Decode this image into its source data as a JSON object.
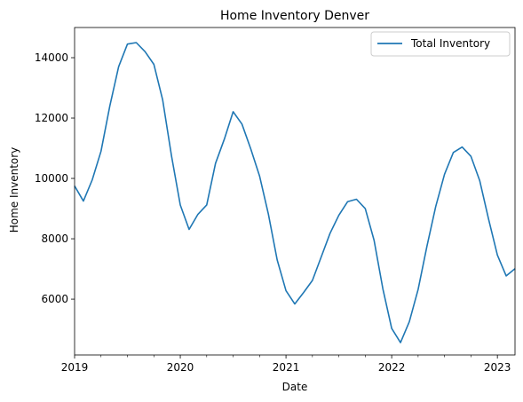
{
  "chart_data": {
    "type": "line",
    "title": "Home Inventory Denver",
    "xlabel": "Date",
    "ylabel": "Home Inventory",
    "xlim": [
      "2019-01",
      "2023-03"
    ],
    "ylim": [
      4150,
      15000
    ],
    "x_ticks": [
      "2019",
      "2020",
      "2021",
      "2022",
      "2023"
    ],
    "y_ticks": [
      6000,
      8000,
      10000,
      12000,
      14000
    ],
    "grid": false,
    "legend_position": "top-right",
    "series": [
      {
        "name": "Total Inventory",
        "color": "#1f77b4",
        "x": [
          "2019-01",
          "2019-02",
          "2019-03",
          "2019-04",
          "2019-05",
          "2019-06",
          "2019-07",
          "2019-08",
          "2019-09",
          "2019-10",
          "2019-11",
          "2019-12",
          "2020-01",
          "2020-02",
          "2020-03",
          "2020-04",
          "2020-05",
          "2020-06",
          "2020-07",
          "2020-08",
          "2020-09",
          "2020-10",
          "2020-11",
          "2020-12",
          "2021-01",
          "2021-02",
          "2021-03",
          "2021-04",
          "2021-05",
          "2021-06",
          "2021-07",
          "2021-08",
          "2021-09",
          "2021-10",
          "2021-11",
          "2021-12",
          "2022-01",
          "2022-02",
          "2022-03",
          "2022-04",
          "2022-05",
          "2022-06",
          "2022-07",
          "2022-08",
          "2022-09",
          "2022-10",
          "2022-11",
          "2022-12",
          "2023-01",
          "2023-02",
          "2023-03"
        ],
        "values": [
          9750,
          9250,
          9950,
          10900,
          12400,
          13700,
          14450,
          14500,
          14200,
          13780,
          12600,
          10750,
          9120,
          8310,
          8810,
          9120,
          10500,
          11300,
          12210,
          11800,
          10980,
          10080,
          8820,
          7300,
          6280,
          5840,
          6220,
          6620,
          7400,
          8180,
          8780,
          9230,
          9310,
          9000,
          7950,
          6340,
          5030,
          4560,
          5250,
          6320,
          7750,
          9070,
          10140,
          10860,
          11040,
          10730,
          9920,
          8650,
          7460,
          6770,
          7010
        ]
      }
    ]
  }
}
